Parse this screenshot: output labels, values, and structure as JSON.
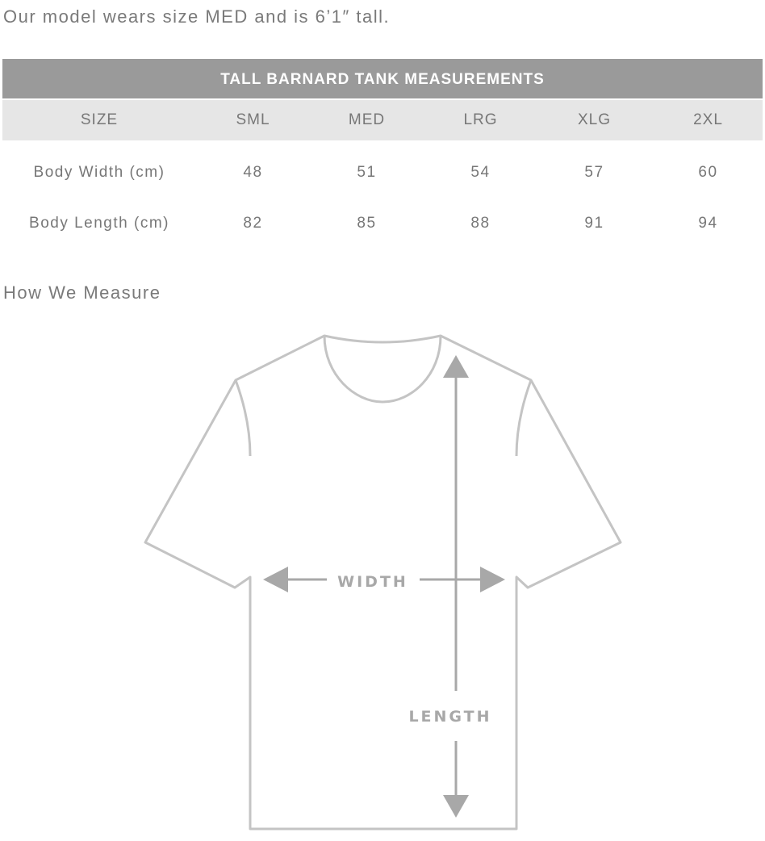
{
  "intro": "Our model wears size MED and is 6’1″ tall.",
  "table": {
    "title": "TALL BARNARD TANK MEASUREMENTS",
    "header": [
      "SIZE",
      "SML",
      "MED",
      "LRG",
      "XLG",
      "2XL"
    ],
    "rows": [
      {
        "label": "Body Width (cm)",
        "values": [
          "48",
          "51",
          "54",
          "57",
          "60"
        ]
      },
      {
        "label": "Body Length (cm)",
        "values": [
          "82",
          "85",
          "88",
          "91",
          "94"
        ]
      }
    ]
  },
  "how_we_measure": "How We Measure",
  "diagram": {
    "width_label": "WIDTH",
    "length_label": "LENGTH",
    "outline_color": "#c4c4c4",
    "arrow_color": "#a8a8a8"
  }
}
